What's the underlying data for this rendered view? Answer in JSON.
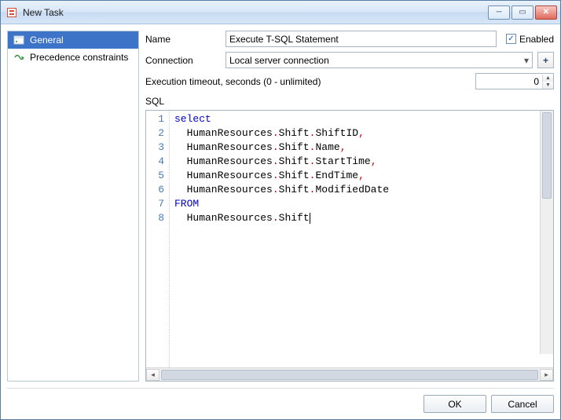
{
  "window": {
    "title": "New Task"
  },
  "sidebar": {
    "items": [
      {
        "label": "General",
        "selected": true
      },
      {
        "label": "Precedence constraints",
        "selected": false
      }
    ]
  },
  "form": {
    "name_label": "Name",
    "name_value": "Execute T-SQL Statement",
    "enabled_label": "Enabled",
    "enabled_checked": true,
    "connection_label": "Connection",
    "connection_value": "Local server connection",
    "timeout_label": "Execution timeout, seconds (0 - unlimited)",
    "timeout_value": "0",
    "sql_label": "SQL"
  },
  "sql": {
    "line_numbers": [
      "1",
      "2",
      "3",
      "4",
      "5",
      "6",
      "7",
      "8"
    ],
    "lines": [
      {
        "indent": 0,
        "tokens": [
          {
            "t": "select",
            "c": "kw"
          }
        ]
      },
      {
        "indent": 1,
        "tokens": [
          {
            "t": "HumanResources",
            "c": ""
          },
          {
            "t": ".",
            "c": "punct"
          },
          {
            "t": "Shift",
            "c": ""
          },
          {
            "t": ".",
            "c": "punct"
          },
          {
            "t": "ShiftID",
            "c": ""
          },
          {
            "t": ",",
            "c": "punct"
          }
        ]
      },
      {
        "indent": 1,
        "tokens": [
          {
            "t": "HumanResources",
            "c": ""
          },
          {
            "t": ".",
            "c": "punct"
          },
          {
            "t": "Shift",
            "c": ""
          },
          {
            "t": ".",
            "c": "punct"
          },
          {
            "t": "Name",
            "c": ""
          },
          {
            "t": ",",
            "c": "punct"
          }
        ]
      },
      {
        "indent": 1,
        "tokens": [
          {
            "t": "HumanResources",
            "c": ""
          },
          {
            "t": ".",
            "c": "punct"
          },
          {
            "t": "Shift",
            "c": ""
          },
          {
            "t": ".",
            "c": "punct"
          },
          {
            "t": "StartTime",
            "c": ""
          },
          {
            "t": ",",
            "c": "punct"
          }
        ]
      },
      {
        "indent": 1,
        "tokens": [
          {
            "t": "HumanResources",
            "c": ""
          },
          {
            "t": ".",
            "c": "punct"
          },
          {
            "t": "Shift",
            "c": ""
          },
          {
            "t": ".",
            "c": "punct"
          },
          {
            "t": "EndTime",
            "c": ""
          },
          {
            "t": ",",
            "c": "punct"
          }
        ]
      },
      {
        "indent": 1,
        "tokens": [
          {
            "t": "HumanResources",
            "c": ""
          },
          {
            "t": ".",
            "c": "punct"
          },
          {
            "t": "Shift",
            "c": ""
          },
          {
            "t": ".",
            "c": "punct"
          },
          {
            "t": "ModifiedDate",
            "c": ""
          }
        ]
      },
      {
        "indent": 0,
        "tokens": [
          {
            "t": "FROM",
            "c": "kw"
          }
        ]
      },
      {
        "indent": 1,
        "tokens": [
          {
            "t": "HumanResources",
            "c": ""
          },
          {
            "t": ".",
            "c": "punct"
          },
          {
            "t": "Shift",
            "c": ""
          }
        ],
        "caret": true
      }
    ]
  },
  "buttons": {
    "ok": "OK",
    "cancel": "Cancel"
  },
  "colors": {
    "selection": "#3d74c7",
    "keyword": "#0000cc",
    "punct": "#c00000"
  }
}
